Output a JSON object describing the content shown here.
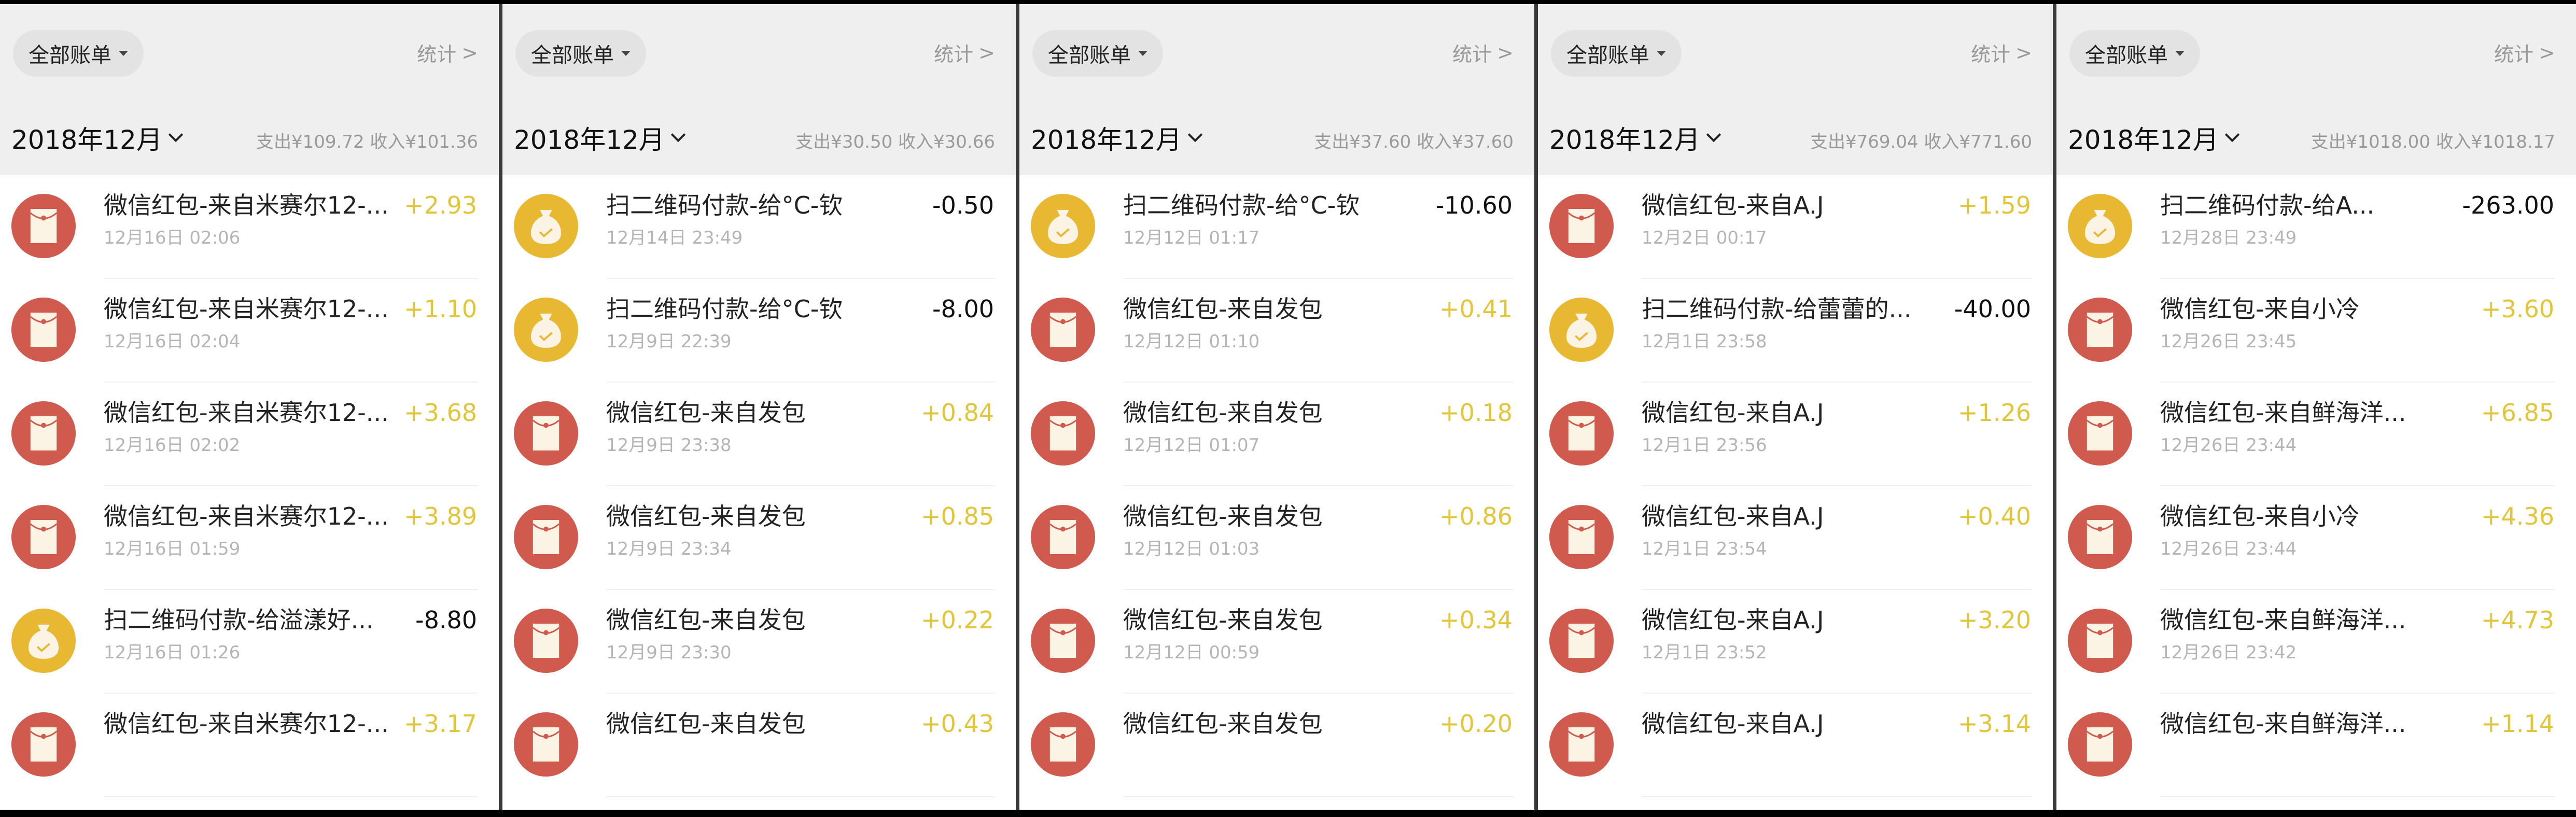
{
  "colors": {
    "income": "#e3c53a",
    "expense": "#111111",
    "red_icon": "#d05a4e",
    "yellow_icon": "#e9b833",
    "icon_inner": "#fbf3e3"
  },
  "panels": [
    {
      "filter_label": "全部账单",
      "stats_label": "统计",
      "month": "2018年12月",
      "summary": "支出¥109.72 收入¥101.36",
      "rows": [
        {
          "icon": "red-packet-icon",
          "title": "微信红包-来自米赛尔12-...",
          "time": "12月16日 02:06",
          "amount": "+2.93",
          "type": "income"
        },
        {
          "icon": "red-packet-icon",
          "title": "微信红包-来自米赛尔12-...",
          "time": "12月16日 02:04",
          "amount": "+1.10",
          "type": "income"
        },
        {
          "icon": "red-packet-icon",
          "title": "微信红包-来自米赛尔12-...",
          "time": "12月16日 02:02",
          "amount": "+3.68",
          "type": "income"
        },
        {
          "icon": "red-packet-icon",
          "title": "微信红包-来自米赛尔12-...",
          "time": "12月16日 01:59",
          "amount": "+3.89",
          "type": "income"
        },
        {
          "icon": "money-bag-icon",
          "title": "扫二维码付款-给溢漾好...",
          "time": "12月16日 01:26",
          "amount": "-8.80",
          "type": "expense"
        },
        {
          "icon": "red-packet-icon",
          "title": "微信红包-来自米赛尔12-...",
          "time": "",
          "amount": "+3.17",
          "type": "income"
        }
      ]
    },
    {
      "filter_label": "全部账单",
      "stats_label": "统计",
      "month": "2018年12月",
      "summary": "支出¥30.50 收入¥30.66",
      "rows": [
        {
          "icon": "money-bag-icon",
          "title": "扫二维码付款-给°C-钦",
          "time": "12月14日 23:49",
          "amount": "-0.50",
          "type": "expense"
        },
        {
          "icon": "money-bag-icon",
          "title": "扫二维码付款-给°C-钦",
          "time": "12月9日 22:39",
          "amount": "-8.00",
          "type": "expense"
        },
        {
          "icon": "red-packet-icon",
          "title": "微信红包-来自发包",
          "time": "12月9日 23:38",
          "amount": "+0.84",
          "type": "income"
        },
        {
          "icon": "red-packet-icon",
          "title": "微信红包-来自发包",
          "time": "12月9日 23:34",
          "amount": "+0.85",
          "type": "income"
        },
        {
          "icon": "red-packet-icon",
          "title": "微信红包-来自发包",
          "time": "12月9日 23:30",
          "amount": "+0.22",
          "type": "income"
        },
        {
          "icon": "red-packet-icon",
          "title": "微信红包-来自发包",
          "time": "",
          "amount": "+0.43",
          "type": "income"
        }
      ]
    },
    {
      "filter_label": "全部账单",
      "stats_label": "统计",
      "month": "2018年12月",
      "summary": "支出¥37.60 收入¥37.60",
      "rows": [
        {
          "icon": "money-bag-icon",
          "title": "扫二维码付款-给°C-钦",
          "time": "12月12日 01:17",
          "amount": "-10.60",
          "type": "expense"
        },
        {
          "icon": "red-packet-icon",
          "title": "微信红包-来自发包",
          "time": "12月12日 01:10",
          "amount": "+0.41",
          "type": "income"
        },
        {
          "icon": "red-packet-icon",
          "title": "微信红包-来自发包",
          "time": "12月12日 01:07",
          "amount": "+0.18",
          "type": "income"
        },
        {
          "icon": "red-packet-icon",
          "title": "微信红包-来自发包",
          "time": "12月12日 01:03",
          "amount": "+0.86",
          "type": "income"
        },
        {
          "icon": "red-packet-icon",
          "title": "微信红包-来自发包",
          "time": "12月12日 00:59",
          "amount": "+0.34",
          "type": "income"
        },
        {
          "icon": "red-packet-icon",
          "title": "微信红包-来自发包",
          "time": "",
          "amount": "+0.20",
          "type": "income"
        }
      ]
    },
    {
      "filter_label": "全部账单",
      "stats_label": "统计",
      "month": "2018年12月",
      "summary": "支出¥769.04 收入¥771.60",
      "rows": [
        {
          "icon": "red-packet-icon",
          "title": "微信红包-来自A.J",
          "time": "12月2日 00:17",
          "amount": "+1.59",
          "type": "income"
        },
        {
          "icon": "money-bag-icon",
          "title": "扫二维码付款-给蕾蕾的...",
          "time": "12月1日 23:58",
          "amount": "-40.00",
          "type": "expense"
        },
        {
          "icon": "red-packet-icon",
          "title": "微信红包-来自A.J",
          "time": "12月1日 23:56",
          "amount": "+1.26",
          "type": "income"
        },
        {
          "icon": "red-packet-icon",
          "title": "微信红包-来自A.J",
          "time": "12月1日 23:54",
          "amount": "+0.40",
          "type": "income"
        },
        {
          "icon": "red-packet-icon",
          "title": "微信红包-来自A.J",
          "time": "12月1日 23:52",
          "amount": "+3.20",
          "type": "income"
        },
        {
          "icon": "red-packet-icon",
          "title": "微信红包-来自A.J",
          "time": "",
          "amount": "+3.14",
          "type": "income"
        }
      ]
    },
    {
      "filter_label": "全部账单",
      "stats_label": "统计",
      "month": "2018年12月",
      "summary": "支出¥1018.00 收入¥1018.17",
      "rows": [
        {
          "icon": "money-bag-icon",
          "title": "扫二维码付款-给A...",
          "time": "12月28日 23:49",
          "amount": "-263.00",
          "type": "expense"
        },
        {
          "icon": "red-packet-icon",
          "title": "微信红包-来自小冷",
          "time": "12月26日 23:45",
          "amount": "+3.60",
          "type": "income"
        },
        {
          "icon": "red-packet-icon",
          "title": "微信红包-来自鲜海洋...",
          "time": "12月26日 23:44",
          "amount": "+6.85",
          "type": "income"
        },
        {
          "icon": "red-packet-icon",
          "title": "微信红包-来自小冷",
          "time": "12月26日 23:44",
          "amount": "+4.36",
          "type": "income"
        },
        {
          "icon": "red-packet-icon",
          "title": "微信红包-来自鲜海洋...",
          "time": "12月26日 23:42",
          "amount": "+4.73",
          "type": "income"
        },
        {
          "icon": "red-packet-icon",
          "title": "微信红包-来自鲜海洋...",
          "time": "",
          "amount": "+1.14",
          "type": "income"
        }
      ]
    }
  ]
}
